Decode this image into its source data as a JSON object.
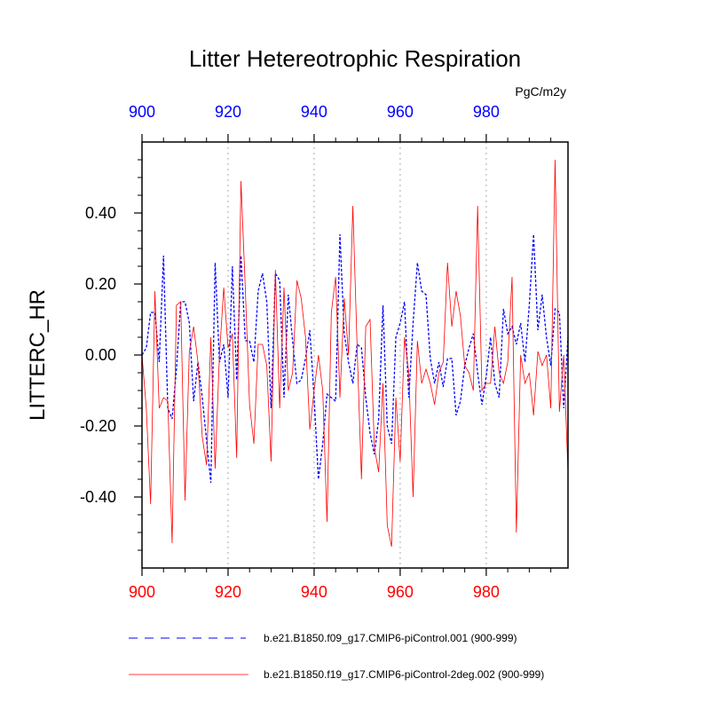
{
  "chart_data": {
    "type": "line",
    "title": "Litter Hetereotrophic Respiration",
    "units": "PgC/m2y",
    "ylabel": "LITTERC_HR",
    "xlim": [
      900,
      999
    ],
    "ylim": [
      -0.6,
      0.6
    ],
    "xticks": [
      900,
      920,
      940,
      960,
      980
    ],
    "xtick_labels": [
      "900",
      "920",
      "940",
      "960",
      "980"
    ],
    "yticks": [
      -0.4,
      -0.2,
      0.0,
      0.2,
      0.4
    ],
    "ytick_labels": [
      "-0.40",
      "-0.20",
      "0.00",
      "0.20",
      "0.40"
    ],
    "top_axis_color": "#0000ff",
    "bottom_axis_color": "#ff0000",
    "grid": "vertical dotted at major x ticks",
    "x_start": 900,
    "series": [
      {
        "name": "b.e21.B1850.f09_g17.CMIP6-piControl.001 (900-999)",
        "color": "#0000ff",
        "style": "dashed",
        "values": [
          0.0,
          0.02,
          0.12,
          0.12,
          -0.02,
          0.28,
          -0.15,
          -0.18,
          -0.04,
          0.15,
          0.15,
          0.09,
          -0.13,
          -0.02,
          -0.12,
          -0.24,
          -0.36,
          0.26,
          -0.02,
          0.03,
          -0.12,
          0.25,
          -0.07,
          0.28,
          0.04,
          0.04,
          -0.02,
          0.18,
          0.23,
          0.15,
          -0.15,
          0.23,
          0.21,
          -0.12,
          0.17,
          0.04,
          -0.08,
          -0.07,
          -0.01,
          0.07,
          -0.12,
          -0.35,
          -0.25,
          -0.11,
          -0.12,
          -0.13,
          0.34,
          0.06,
          -0.02,
          -0.08,
          0.03,
          0.02,
          -0.12,
          -0.22,
          -0.28,
          -0.18,
          0.14,
          -0.2,
          -0.25,
          0.05,
          0.09,
          0.15,
          -0.12,
          0.09,
          0.26,
          0.18,
          0.17,
          -0.01,
          -0.08,
          -0.02,
          -0.09,
          -0.01,
          -0.01,
          -0.17,
          -0.13,
          -0.03,
          0.02,
          0.06,
          -0.05,
          -0.14,
          -0.06,
          0.05,
          -0.08,
          -0.12,
          0.13,
          0.06,
          0.08,
          0.03,
          0.09,
          -0.02,
          0.14,
          0.34,
          0.07,
          0.17,
          0.05,
          -0.03,
          0.13,
          0.12,
          -0.15,
          0.05
        ]
      },
      {
        "name": "b.e21.B1850.f19_g17.CMIP6-piControl-2deg.002 (900-999)",
        "color": "#ff0000",
        "style": "solid",
        "values": [
          0.0,
          -0.15,
          -0.42,
          0.18,
          -0.15,
          -0.12,
          -0.13,
          -0.53,
          0.14,
          0.15,
          -0.41,
          0.01,
          0.08,
          -0.02,
          -0.23,
          -0.31,
          0.05,
          -0.32,
          0.0,
          0.19,
          0.02,
          0.06,
          -0.29,
          0.49,
          0.19,
          -0.14,
          -0.25,
          0.03,
          0.03,
          -0.03,
          -0.3,
          0.24,
          -0.15,
          0.19,
          -0.1,
          -0.05,
          0.21,
          0.16,
          0.05,
          -0.21,
          -0.1,
          0.0,
          -0.1,
          -0.47,
          0.12,
          0.22,
          -0.12,
          0.16,
          0.0,
          0.42,
          0.02,
          -0.35,
          0.08,
          0.1,
          -0.26,
          -0.33,
          -0.08,
          -0.48,
          -0.54,
          -0.12,
          -0.3,
          0.05,
          -0.05,
          -0.4,
          0.04,
          -0.08,
          -0.04,
          -0.08,
          -0.14,
          -0.05,
          -0.02,
          0.26,
          0.08,
          0.18,
          0.11,
          -0.03,
          -0.05,
          -0.1,
          0.42,
          -0.1,
          -0.08,
          -0.08,
          0.08,
          -0.05,
          -0.08,
          -0.02,
          0.22,
          -0.5,
          0.0,
          -0.08,
          -0.05,
          -0.17,
          0.01,
          -0.03,
          0.0,
          -0.15,
          0.55,
          -0.16,
          0.0,
          -0.33
        ]
      }
    ]
  }
}
